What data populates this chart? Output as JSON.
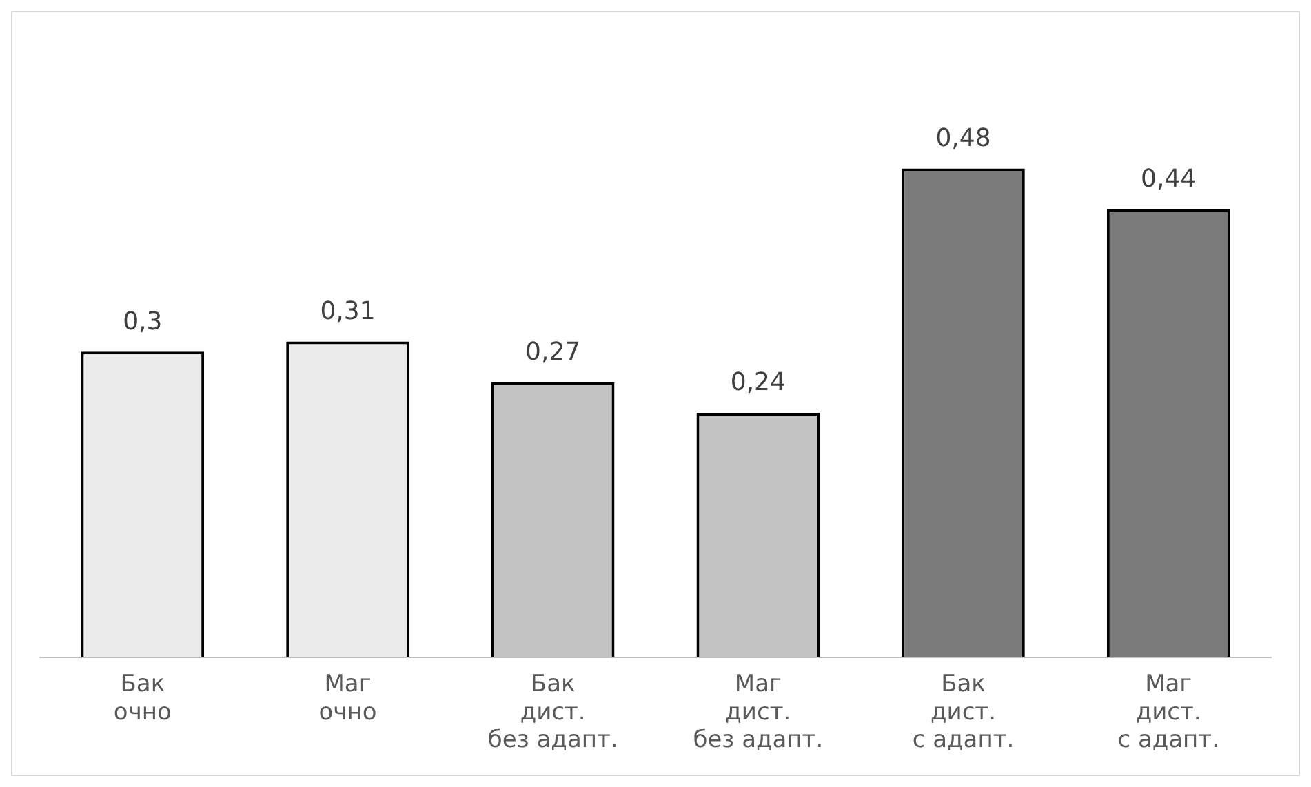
{
  "chart_data": {
    "type": "bar",
    "categories": [
      "Бак\nочно",
      "Маг\nочно",
      "Бак\nдист.\nбез адапт.",
      "Маг\nдист.\nбез адапт.",
      "Бак\nдист.\nс адапт.",
      "Маг\nдист.\nс адапт."
    ],
    "values": [
      0.3,
      0.31,
      0.27,
      0.24,
      0.48,
      0.44
    ],
    "colors": [
      "#ececec",
      "#ececec",
      "#c4c4c4",
      "#c4c4c4",
      "#7a7a7a",
      "#7a7a7a"
    ],
    "value_labels": [
      "0,3",
      "0,31",
      "0,27",
      "0,24",
      "0,48",
      "0,44"
    ],
    "tick_labels": "x",
    "grid": false,
    "legend": false
  }
}
